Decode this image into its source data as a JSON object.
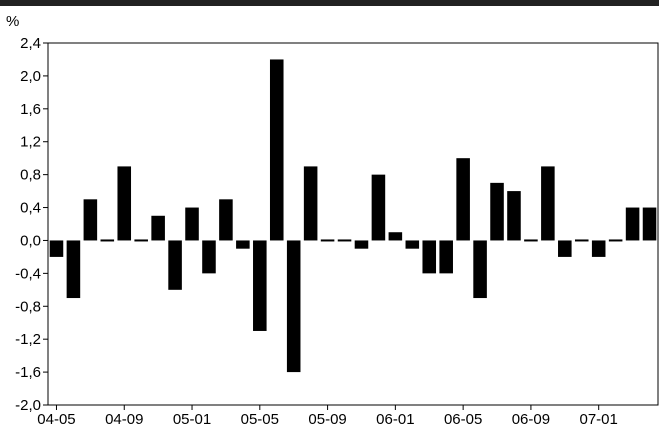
{
  "chart_data": {
    "type": "bar",
    "title": "",
    "xlabel": "",
    "ylabel": "%",
    "ylim": [
      -2.0,
      2.4
    ],
    "yticks": [
      2.4,
      2.0,
      1.6,
      1.2,
      0.8,
      0.4,
      0.0,
      -0.4,
      -0.8,
      -1.2,
      -1.6,
      -2.0
    ],
    "ytick_labels": [
      "2,4",
      "2,0",
      "1,6",
      "1,2",
      "0,8",
      "0,4",
      "0,0",
      "-0,4",
      "-0,8",
      "-1,2",
      "-1,6",
      "-2,0"
    ],
    "xtick_labels": [
      "04-05",
      "04-09",
      "05-01",
      "05-05",
      "05-09",
      "06-01",
      "06-05",
      "06-09",
      "07-01"
    ],
    "xtick_positions": [
      0,
      4,
      8,
      12,
      16,
      20,
      24,
      28,
      32
    ],
    "categories": [
      "04-05",
      "04-06",
      "04-07",
      "04-08",
      "04-09",
      "04-10",
      "04-11",
      "04-12",
      "05-01",
      "05-02",
      "05-03",
      "05-04",
      "05-05",
      "05-06",
      "05-07",
      "05-08",
      "05-09",
      "05-10",
      "05-11",
      "05-12",
      "06-01",
      "06-02",
      "06-03",
      "06-04",
      "06-05",
      "06-06",
      "06-07",
      "06-08",
      "06-09",
      "06-10",
      "06-11",
      "06-12",
      "07-01",
      "07-02",
      "07-03",
      "07-04"
    ],
    "values": [
      -0.2,
      -0.7,
      0.5,
      0.0,
      0.9,
      0.0,
      0.3,
      -0.6,
      0.4,
      -0.4,
      0.5,
      -0.1,
      -1.1,
      2.2,
      -1.6,
      0.9,
      0.0,
      0.0,
      -0.1,
      0.8,
      0.1,
      -0.1,
      -0.4,
      -0.4,
      1.0,
      -0.7,
      0.7,
      0.6,
      0.0,
      0.9,
      -0.2,
      0.0,
      -0.2,
      0.0,
      0.4,
      0.4
    ],
    "grid": false,
    "bar_color": "#000000",
    "top_rule_color": "#222222"
  }
}
